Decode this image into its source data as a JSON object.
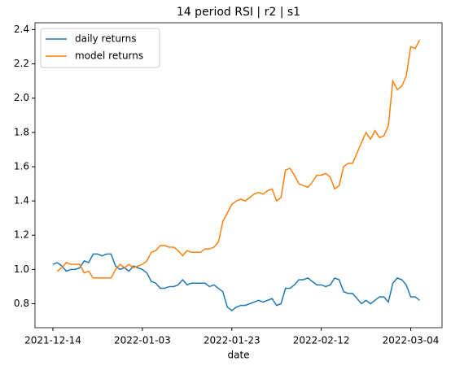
{
  "chart_data": {
    "type": "line",
    "title": "14 period RSI | r2 | s1",
    "xlabel": "date",
    "x": [
      "2021-12-14",
      "2021-12-15",
      "2021-12-16",
      "2021-12-17",
      "2021-12-18",
      "2021-12-19",
      "2021-12-20",
      "2021-12-21",
      "2021-12-22",
      "2021-12-23",
      "2021-12-24",
      "2021-12-25",
      "2021-12-26",
      "2021-12-27",
      "2021-12-28",
      "2021-12-29",
      "2021-12-30",
      "2021-12-31",
      "2022-01-01",
      "2022-01-02",
      "2022-01-03",
      "2022-01-04",
      "2022-01-05",
      "2022-01-06",
      "2022-01-07",
      "2022-01-08",
      "2022-01-09",
      "2022-01-10",
      "2022-01-11",
      "2022-01-12",
      "2022-01-13",
      "2022-01-14",
      "2022-01-15",
      "2022-01-16",
      "2022-01-17",
      "2022-01-18",
      "2022-01-19",
      "2022-01-20",
      "2022-01-21",
      "2022-01-22",
      "2022-01-23",
      "2022-01-24",
      "2022-01-25",
      "2022-01-26",
      "2022-01-27",
      "2022-01-28",
      "2022-01-29",
      "2022-01-30",
      "2022-01-31",
      "2022-02-01",
      "2022-02-02",
      "2022-02-03",
      "2022-02-04",
      "2022-02-05",
      "2022-02-06",
      "2022-02-07",
      "2022-02-08",
      "2022-02-09",
      "2022-02-10",
      "2022-02-11",
      "2022-02-12",
      "2022-02-13",
      "2022-02-14",
      "2022-02-15",
      "2022-02-16",
      "2022-02-17",
      "2022-02-18",
      "2022-02-19",
      "2022-02-20",
      "2022-02-21",
      "2022-02-22",
      "2022-02-23",
      "2022-02-24",
      "2022-02-25",
      "2022-02-26",
      "2022-02-27",
      "2022-02-28",
      "2022-03-01",
      "2022-03-02",
      "2022-03-03",
      "2022-03-04",
      "2022-03-05",
      "2022-03-06"
    ],
    "series": [
      {
        "name": "daily returns",
        "color": "#1f77b4",
        "values": [
          1.03,
          1.04,
          1.02,
          0.99,
          1.0,
          1.0,
          1.01,
          1.05,
          1.04,
          1.09,
          1.09,
          1.08,
          1.09,
          1.09,
          1.02,
          1.0,
          1.01,
          0.99,
          1.02,
          1.01,
          1.0,
          0.98,
          0.93,
          0.92,
          0.89,
          0.89,
          0.9,
          0.9,
          0.91,
          0.94,
          0.91,
          0.92,
          0.92,
          0.92,
          0.92,
          0.9,
          0.91,
          0.89,
          0.87,
          0.78,
          0.76,
          0.78,
          0.79,
          0.79,
          0.8,
          0.81,
          0.82,
          0.81,
          0.82,
          0.83,
          0.79,
          0.8,
          0.89,
          0.89,
          0.91,
          0.94,
          0.94,
          0.95,
          0.93,
          0.91,
          0.91,
          0.9,
          0.91,
          0.95,
          0.94,
          0.87,
          0.86,
          0.86,
          0.83,
          0.8,
          0.82,
          0.8,
          0.82,
          0.84,
          0.84,
          0.81,
          0.92,
          0.95,
          0.94,
          0.91,
          0.84,
          0.84,
          0.82
        ]
      },
      {
        "name": "model returns",
        "color": "#ff7f0e",
        "values": [
          null,
          0.99,
          1.01,
          1.04,
          1.03,
          1.03,
          1.03,
          0.98,
          0.99,
          0.95,
          0.95,
          0.95,
          0.95,
          0.95,
          1.0,
          1.03,
          1.01,
          1.03,
          1.01,
          1.02,
          1.03,
          1.05,
          1.1,
          1.11,
          1.14,
          1.14,
          1.13,
          1.13,
          1.11,
          1.08,
          1.11,
          1.1,
          1.1,
          1.1,
          1.12,
          1.12,
          1.13,
          1.16,
          1.28,
          1.33,
          1.38,
          1.4,
          1.41,
          1.4,
          1.42,
          1.44,
          1.45,
          1.44,
          1.46,
          1.47,
          1.4,
          1.42,
          1.58,
          1.59,
          1.55,
          1.5,
          1.49,
          1.48,
          1.51,
          1.55,
          1.55,
          1.56,
          1.54,
          1.47,
          1.49,
          1.6,
          1.62,
          1.62,
          1.68,
          1.74,
          1.8,
          1.76,
          1.81,
          1.77,
          1.78,
          1.84,
          2.1,
          2.05,
          2.07,
          2.13,
          2.3,
          2.29,
          2.34
        ]
      }
    ],
    "xlim": [
      "2021-12-10",
      "2022-03-11"
    ],
    "xticks": [
      "2021-12-14",
      "2022-01-03",
      "2022-01-23",
      "2022-02-12",
      "2022-03-04"
    ],
    "ylim": [
      0.66,
      2.44
    ],
    "yticks": [
      {
        "value": 0.8,
        "label": "0.8"
      },
      {
        "value": 1.0,
        "label": "1.0"
      },
      {
        "value": 1.2,
        "label": "1.2"
      },
      {
        "value": 1.4,
        "label": "1.4"
      },
      {
        "value": 1.6,
        "label": "1.6"
      },
      {
        "value": 1.8,
        "label": "1.8"
      },
      {
        "value": 2.0,
        "label": "2.0"
      },
      {
        "value": 2.2,
        "label": "2.2"
      },
      {
        "value": 2.4,
        "label": "2.4"
      }
    ],
    "legend": "upper left"
  }
}
